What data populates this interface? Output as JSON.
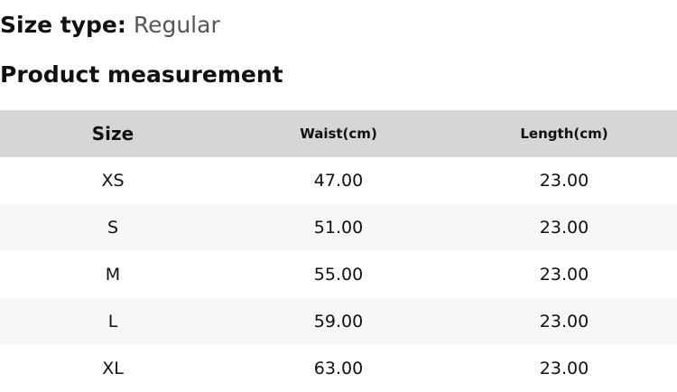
{
  "size_type": {
    "label": "Size type:",
    "value": "Regular"
  },
  "section_title": "Product measurement",
  "table": {
    "headers": [
      "Size",
      "Waist(cm)",
      "Length(cm)"
    ],
    "rows": [
      [
        "XS",
        "47.00",
        "23.00"
      ],
      [
        "S",
        "51.00",
        "23.00"
      ],
      [
        "M",
        "55.00",
        "23.00"
      ],
      [
        "L",
        "59.00",
        "23.00"
      ],
      [
        "XL",
        "63.00",
        "23.00"
      ]
    ]
  }
}
